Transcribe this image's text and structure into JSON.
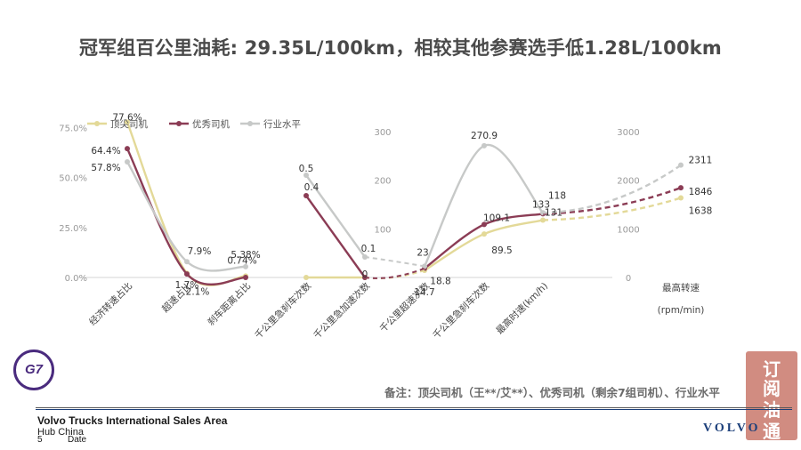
{
  "title": "冠军组百公里油耗: 29.35L/100km，相较其他参赛选手低1.28L/100km",
  "note": "备注：顶尖司机（王**/艾**）、优秀司机（剩余7组司机）、行业水平",
  "footer": {
    "company": "Volvo Trucks International Sales Area",
    "area": "Hub China",
    "page": "5",
    "date": "Date"
  },
  "logos": {
    "g7": "G7",
    "volvo": "VOLVO"
  },
  "colors": {
    "top": "#e3d998",
    "good": "#8b3c55",
    "industry": "#c7c9c8",
    "axis": "#9a9a9a"
  },
  "chart_data": [
    {
      "type": "line",
      "categories": [
        "经济转速占比",
        "超速占比",
        "刹车距离占比"
      ],
      "ytick_labels": [
        "0.0%",
        "25.0%",
        "50.0%",
        "75.0%"
      ],
      "ylim": [
        0,
        0.8
      ],
      "series": [
        {
          "name": "顶尖司机",
          "values": [
            0.776,
            0.021,
            0.0074
          ],
          "labels": [
            "77.6%",
            "2.1%",
            "0.74%"
          ]
        },
        {
          "name": "优秀司机",
          "values": [
            0.644,
            0.017,
            0.0
          ],
          "labels": [
            "64.4%",
            "1.7%",
            ""
          ]
        },
        {
          "name": "行业水平",
          "values": [
            0.578,
            0.079,
            0.0538
          ],
          "labels": [
            "57.8%",
            "7.9%",
            "5.38%"
          ]
        }
      ]
    },
    {
      "type": "line",
      "categories": [
        "千公里急刹车次数",
        "千公里急加速次数"
      ],
      "ylim": [
        0,
        0.6
      ],
      "series": [
        {
          "name": "顶尖司机",
          "values": [
            0.0,
            0.0
          ],
          "labels": [
            "",
            ""
          ]
        },
        {
          "name": "优秀司机",
          "values": [
            0.4,
            0.0
          ],
          "labels": [
            "0.4",
            "0"
          ]
        },
        {
          "name": "行业水平",
          "values": [
            0.5,
            0.1
          ],
          "labels": [
            "0.5",
            "0.1"
          ]
        }
      ]
    },
    {
      "type": "line",
      "categories": [
        "千公里超速次数",
        "千公里急刹车次数",
        "最高时速(km/h)"
      ],
      "ytick_labels": [
        "100",
        "200",
        "300"
      ],
      "ylim": [
        0,
        300
      ],
      "series": [
        {
          "name": "顶尖司机",
          "values": [
            14.7,
            89.5,
            118
          ],
          "labels": [
            "14.7",
            "89.5",
            "118"
          ]
        },
        {
          "name": "优秀司机",
          "values": [
            18.8,
            109.1,
            131
          ],
          "labels": [
            "18.8",
            "109.1",
            "131"
          ]
        },
        {
          "name": "行业水平",
          "values": [
            23,
            270.9,
            133
          ],
          "labels": [
            "23",
            "270.9",
            "133"
          ]
        }
      ]
    },
    {
      "type": "line",
      "categories": [
        "最高转速 (rpm/min)"
      ],
      "ytick_labels": [
        "0",
        "1000",
        "2000",
        "3000"
      ],
      "ylim": [
        0,
        3000
      ],
      "series": [
        {
          "name": "顶尖司机",
          "values": [
            1638
          ],
          "labels": [
            "1638"
          ]
        },
        {
          "name": "优秀司机",
          "values": [
            1846
          ],
          "labels": [
            "1846"
          ]
        },
        {
          "name": "行业水平",
          "values": [
            2311
          ],
          "labels": [
            "2311"
          ]
        }
      ]
    }
  ]
}
